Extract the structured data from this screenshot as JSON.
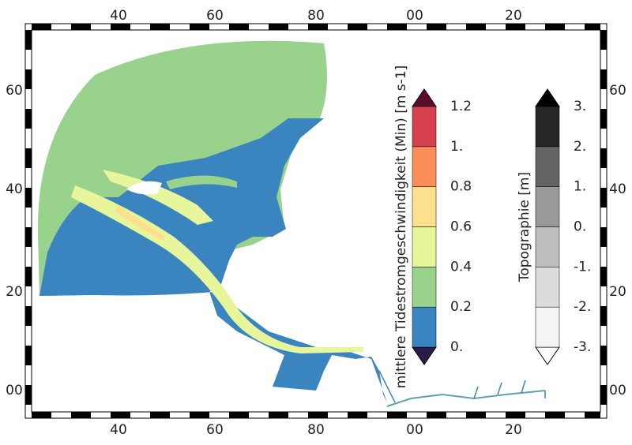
{
  "frame": {
    "top_labels": [
      "40",
      "60",
      "80",
      "00",
      "20"
    ],
    "bottom_labels": [
      "40",
      "60",
      "80",
      "00",
      "20"
    ],
    "left_labels": [
      "60",
      "40",
      "20",
      "00"
    ],
    "right_labels": [
      "60",
      "40",
      "20",
      "00"
    ]
  },
  "colorbars": [
    {
      "title": "mittlere Tidestromgeschwindigkeit (Min) [m s-1]",
      "labels": [
        "0.",
        "0.2",
        "0.4",
        "0.6",
        "0.8",
        "1.",
        "1.2"
      ],
      "colors": [
        "#3a85c0",
        "#99d28c",
        "#e7f59b",
        "#fde08e",
        "#fb8d5a",
        "#d4404e"
      ],
      "over_color": "#5c0b2c",
      "under_color": "#2b1d4b"
    },
    {
      "title": "Topographie [m]",
      "labels": [
        "-3.",
        "-2.",
        "-1.",
        "0.",
        "1.",
        "2.",
        "3."
      ],
      "colors": [
        "#f4f4f4",
        "#dcdcdc",
        "#bdbdbd",
        "#999999",
        "#646464",
        "#262626"
      ],
      "over_color": "#000000",
      "under_color": "#ffffff"
    }
  ]
}
